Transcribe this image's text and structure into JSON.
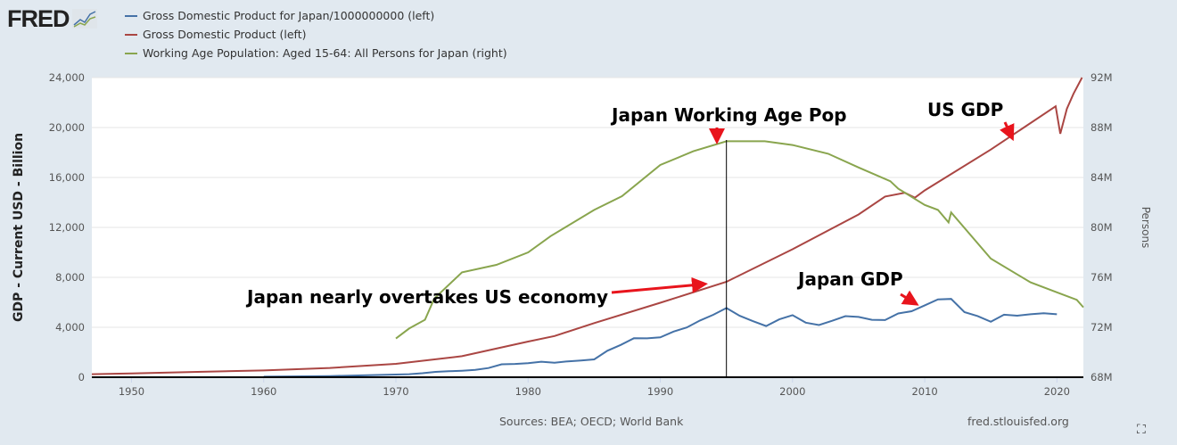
{
  "logo": "FRED",
  "legend": [
    {
      "label": "Gross Domestic Product for Japan/1000000000 (left)",
      "color": "#4572a7"
    },
    {
      "label": "Gross Domestic Product (left)",
      "color": "#aa4643"
    },
    {
      "label": "Working Age Population: Aged 15-64: All Persons for Japan (right)",
      "color": "#89a54e"
    }
  ],
  "footer": {
    "sources": "Sources: BEA; OECD; World Bank",
    "url": "fred.stlouisfed.org"
  },
  "chart_data": {
    "type": "line",
    "ylabel": "GDP - Current USD - Billion",
    "y2label": "Persons",
    "xlim": [
      1947,
      2022
    ],
    "ylim": [
      0,
      24000
    ],
    "y2lim": [
      68,
      92
    ],
    "x_ticks": [
      "1950",
      "1960",
      "1970",
      "1980",
      "1990",
      "2000",
      "2010",
      "2020"
    ],
    "y_ticks": [
      "0",
      "4,000",
      "8,000",
      "12,000",
      "16,000",
      "20,000",
      "24,000"
    ],
    "y2_ticks": [
      "68M",
      "72M",
      "76M",
      "80M",
      "84M",
      "88M",
      "92M"
    ],
    "grid": true,
    "series": [
      {
        "name": "Gross Domestic Product for Japan/1000000000 (left)",
        "axis": "left",
        "color": "#4572a7",
        "x": [
          1960,
          1965,
          1970,
          1971,
          1972,
          1973,
          1974,
          1975,
          1976,
          1977,
          1978,
          1979,
          1980,
          1981,
          1982,
          1983,
          1984,
          1985,
          1986,
          1987,
          1988,
          1989,
          1990,
          1991,
          1992,
          1993,
          1994,
          1995,
          1996,
          1997,
          1998,
          1999,
          2000,
          2001,
          2002,
          2003,
          2004,
          2005,
          2006,
          2007,
          2008,
          2009,
          2010,
          2011,
          2012,
          2013,
          2014,
          2015,
          2016,
          2017,
          2018,
          2019,
          2020
        ],
        "y": [
          44,
          91,
          213,
          240,
          318,
          432,
          479,
          522,
          585,
          737,
          1033,
          1067,
          1127,
          1243,
          1158,
          1270,
          1345,
          1427,
          2121,
          2585,
          3124,
          3117,
          3196,
          3657,
          3988,
          4545,
          4999,
          5546,
          4924,
          4493,
          4098,
          4636,
          4968,
          4375,
          4182,
          4520,
          4894,
          4831,
          4601,
          4579,
          5106,
          5289,
          5759,
          6233,
          6272,
          5212,
          4897,
          4445,
          5004,
          4931,
          5041,
          5118,
          5040
        ]
      },
      {
        "name": "Gross Domestic Product (left)",
        "axis": "left",
        "color": "#aa4643",
        "x": [
          1947,
          1950,
          1955,
          1960,
          1965,
          1970,
          1975,
          1980,
          1982,
          1985,
          1990,
          1995,
          2000,
          2005,
          2007,
          2008.5,
          2009.25,
          2010,
          2015,
          2019.9,
          2020.25,
          2020.75,
          2021.25,
          2021.9
        ],
        "y": [
          243,
          300,
          426,
          543,
          743,
          1073,
          1685,
          2857,
          3300,
          4339,
          5963,
          7640,
          10252,
          13039,
          14474,
          14770,
          14380,
          14964,
          18238,
          21700,
          19500,
          21500,
          22700,
          24000
        ]
      },
      {
        "name": "Working Age Population: Aged 15-64: All Persons for Japan (right)",
        "axis": "right",
        "color": "#89a54e",
        "unit": "M",
        "x": [
          1970,
          1971,
          1972.2,
          1972.9,
          1975,
          1977.6,
          1980,
          1981.7,
          1985,
          1987.1,
          1990,
          1992.5,
          1995,
          1997.9,
          2000,
          2002.7,
          2005,
          2007.4,
          2008,
          2010,
          2011,
          2011.8,
          2012,
          2015,
          2018,
          2020,
          2021.5,
          2022
        ],
        "y": [
          71.1,
          71.9,
          72.6,
          74.3,
          76.4,
          77.0,
          78.0,
          79.3,
          81.4,
          82.5,
          85.0,
          86.1,
          86.9,
          86.9,
          86.6,
          85.9,
          84.8,
          83.7,
          83.1,
          81.8,
          81.4,
          80.4,
          81.2,
          77.5,
          75.6,
          74.8,
          74.2,
          73.6
        ]
      }
    ],
    "annotations": [
      {
        "text": "Japan Working Age Pop",
        "x": 1995
      },
      {
        "text": "US GDP",
        "x": 2016.5
      },
      {
        "text": "Japan nearly overtakes US economy",
        "x": 1993.5
      },
      {
        "text": "Japan GDP",
        "x": 2009
      }
    ],
    "vertical_line_x": 1995
  }
}
